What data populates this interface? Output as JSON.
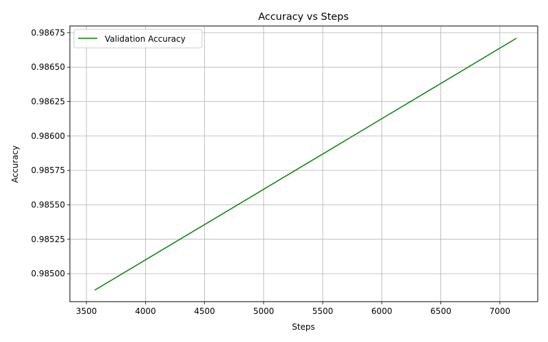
{
  "chart_data": {
    "type": "line",
    "title": "Accuracy vs Steps",
    "xlabel": "Steps",
    "ylabel": "Accuracy",
    "xlim": [
      3360,
      7320
    ],
    "ylim": [
      0.984797,
      0.986799
    ],
    "xticks": [
      3500,
      4000,
      4500,
      5000,
      5500,
      6000,
      6500,
      7000
    ],
    "xtick_labels": [
      "3500",
      "4000",
      "4500",
      "5000",
      "5500",
      "6000",
      "6500",
      "7000"
    ],
    "yticks": [
      0.985,
      0.98525,
      0.9855,
      0.98575,
      0.986,
      0.98625,
      0.9865,
      0.98675
    ],
    "ytick_labels": [
      "0.98500",
      "0.98525",
      "0.98550",
      "0.98575",
      "0.98600",
      "0.98625",
      "0.98650",
      "0.98675"
    ],
    "grid": true,
    "legend_position": "top-left",
    "series": [
      {
        "name": "Validation Accuracy",
        "color": "#008000",
        "x": [
          3570,
          7140
        ],
        "y": [
          0.98488,
          0.98671
        ]
      }
    ]
  }
}
